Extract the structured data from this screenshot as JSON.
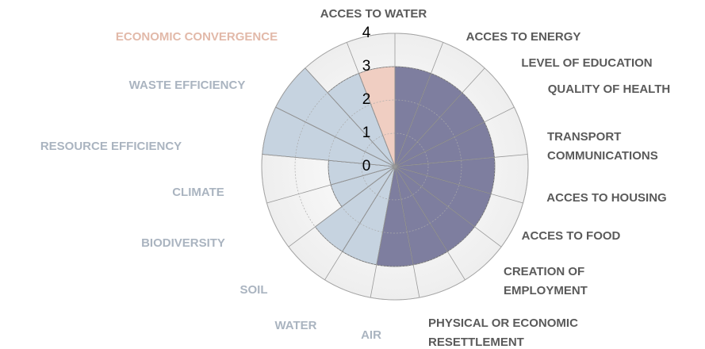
{
  "chart_data": {
    "type": "polar_area",
    "categories": [
      "ACCES TO WATER",
      "ACCES TO ENERGY",
      "LEVEL OF EDUCATION",
      "QUALITY OF HEALTH",
      "TRANSPORT COMMUNICATIONS",
      "ACCES TO HOUSING",
      "ACCES TO FOOD",
      "CREATION OF EMPLOYMENT",
      "PHYSICAL OR ECONOMIC RESETTLEMENT",
      "AIR",
      "WATER",
      "SOIL",
      "BIODIVERSITY",
      "CLIMATE",
      "RESOURCE EFFICIENCY",
      "WASTE EFFICIENCY",
      "ECONOMIC CONVERGENCE"
    ],
    "values": [
      3,
      3,
      3,
      3,
      3,
      3,
      3,
      3,
      3,
      3,
      3,
      2,
      2,
      4,
      4,
      3,
      3
    ],
    "colors": [
      "#77779a",
      "#77779a",
      "#77779a",
      "#77779a",
      "#77779a",
      "#77779a",
      "#77779a",
      "#77779a",
      "#77779a",
      "#c3d1de",
      "#c3d1de",
      "#c3d1de",
      "#c3d1de",
      "#c3d1de",
      "#c3d1de",
      "#c3d1de",
      "#efcbbf"
    ],
    "label_colors": [
      "#5a5a5a",
      "#5a5a5a",
      "#5a5a5a",
      "#5a5a5a",
      "#5a5a5a",
      "#5a5a5a",
      "#5a5a5a",
      "#5a5a5a",
      "#5a5a5a",
      "#aab4c0",
      "#aab4c0",
      "#aab4c0",
      "#aab4c0",
      "#aab4c0",
      "#aab4c0",
      "#aab4c0",
      "#e2b9a9"
    ],
    "rlim": [
      0,
      4
    ],
    "rticks": [
      0,
      1,
      2,
      3,
      4
    ],
    "grid": true
  }
}
